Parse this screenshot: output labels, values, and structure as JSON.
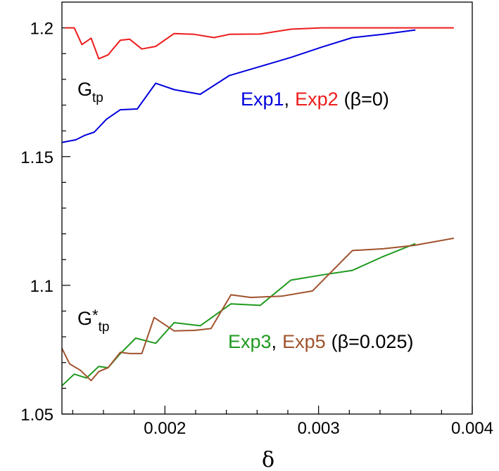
{
  "chart_data": {
    "type": "line",
    "xlabel": "δ",
    "ylabel": "",
    "xlim": [
      0.00133,
      0.004
    ],
    "ylim": [
      1.05,
      1.21
    ],
    "grid": false,
    "x_ticks": [
      {
        "value": 0.002,
        "label": "0.002"
      },
      {
        "value": 0.003,
        "label": "0.003"
      },
      {
        "value": 0.004,
        "label": "0.004"
      }
    ],
    "x_minor_ticks": [
      0.0014,
      0.0016,
      0.0018,
      0.0022,
      0.0024,
      0.0026,
      0.0028,
      0.0032,
      0.0034,
      0.0036,
      0.0038
    ],
    "y_ticks": [
      {
        "value": 1.05,
        "label": "1.05"
      },
      {
        "value": 1.1,
        "label": "1.1"
      },
      {
        "value": 1.15,
        "label": "1.15"
      },
      {
        "value": 1.2,
        "label": "1.2"
      }
    ],
    "y_minor_ticks": [
      1.06,
      1.07,
      1.08,
      1.09,
      1.11,
      1.12,
      1.13,
      1.14,
      1.16,
      1.17,
      1.18,
      1.19
    ],
    "series": [
      {
        "name": "Exp1",
        "color": "#0000dd",
        "x": [
          0.00133,
          0.00142,
          0.00148,
          0.00154,
          0.00162,
          0.00171,
          0.00182,
          0.00194,
          0.00206,
          0.00223,
          0.00242,
          0.00262,
          0.00282,
          0.00302,
          0.00322,
          0.00342,
          0.00363
        ],
        "y": [
          1.1555,
          1.1565,
          1.1583,
          1.1595,
          1.1645,
          1.1682,
          1.1685,
          1.1785,
          1.176,
          1.1742,
          1.1815,
          1.185,
          1.1885,
          1.1925,
          1.1962,
          1.1975,
          1.1992
        ]
      },
      {
        "name": "Exp2",
        "color": "#ee1c1c",
        "x": [
          0.00135,
          0.00141,
          0.00146,
          0.00152,
          0.00157,
          0.00163,
          0.00171,
          0.00177,
          0.00185,
          0.00194,
          0.00206,
          0.00219,
          0.00232,
          0.00242,
          0.00262,
          0.00282,
          0.00302,
          0.00322,
          0.00342,
          0.00362,
          0.00388
        ],
        "y": [
          1.2,
          1.2,
          1.1935,
          1.196,
          1.188,
          1.1895,
          1.1952,
          1.1956,
          1.1918,
          1.1928,
          1.1978,
          1.1975,
          1.1962,
          1.1975,
          1.1976,
          1.1995,
          1.2,
          1.2,
          1.2,
          1.2,
          1.2
        ]
      },
      {
        "name": "Exp3",
        "color": "#1e9a1e",
        "x": [
          0.00133,
          0.00141,
          0.00149,
          0.00157,
          0.00163,
          0.00171,
          0.00181,
          0.00194,
          0.00206,
          0.00223,
          0.00243,
          0.00262,
          0.00282,
          0.00302,
          0.00322,
          0.00342,
          0.00363
        ],
        "y": [
          1.061,
          1.0655,
          1.064,
          1.0685,
          1.068,
          1.0735,
          1.0795,
          1.0775,
          1.0855,
          1.0843,
          1.0928,
          1.0922,
          1.102,
          1.104,
          1.1058,
          1.1112,
          1.1162
        ]
      },
      {
        "name": "Exp5",
        "color": "#a0522d",
        "x": [
          0.00133,
          0.00138,
          0.00145,
          0.00152,
          0.00157,
          0.00163,
          0.00171,
          0.00177,
          0.00185,
          0.00193,
          0.00206,
          0.00219,
          0.0023,
          0.00243,
          0.00256,
          0.00276,
          0.00296,
          0.00322,
          0.00342,
          0.00362,
          0.00388
        ],
        "y": [
          1.0755,
          1.0695,
          1.067,
          1.063,
          1.0665,
          1.068,
          1.074,
          1.0735,
          1.0735,
          1.0875,
          1.0823,
          1.0825,
          1.0832,
          1.0963,
          1.0953,
          1.0958,
          1.0978,
          1.1135,
          1.1142,
          1.1155,
          1.1183
        ]
      }
    ],
    "annotations": {
      "g_top": {
        "main": "G",
        "sub": "tp"
      },
      "g_bottom": {
        "main": "G",
        "star": "*",
        "sub": "tp"
      },
      "legend_top": {
        "exp1": "Exp1",
        "sep": ",",
        "exp2": "Exp2",
        "beta": "(β=0)"
      },
      "legend_bottom": {
        "exp3": "Exp3",
        "sep": ",",
        "exp5": "Exp5",
        "beta": "(β=0.025)"
      }
    }
  }
}
